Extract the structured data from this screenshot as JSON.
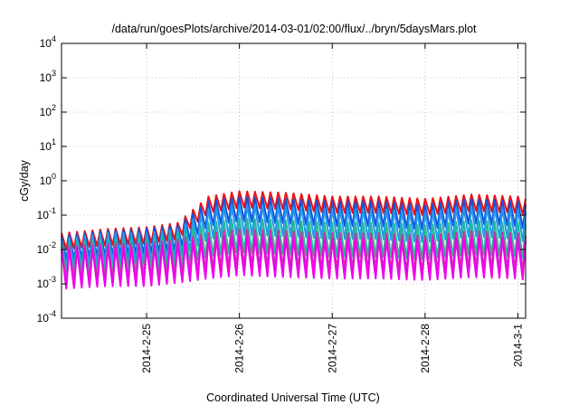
{
  "chart_data": {
    "type": "line",
    "title": "/data/run/goesPlots/archive/2014-03-01/02:00/flux/../bryn/5daysMars.plot",
    "xlabel": "Coordinated Universal Time (UTC)",
    "ylabel": "cGy/day",
    "yscale": "log",
    "ylim": [
      0.0001,
      10000
    ],
    "y_ticks": [
      {
        "base": "10",
        "exp": "-4"
      },
      {
        "base": "10",
        "exp": "-3"
      },
      {
        "base": "10",
        "exp": "-2"
      },
      {
        "base": "10",
        "exp": "-1"
      },
      {
        "base": "10",
        "exp": "0"
      },
      {
        "base": "10",
        "exp": "1"
      },
      {
        "base": "10",
        "exp": "2"
      },
      {
        "base": "10",
        "exp": "3"
      },
      {
        "base": "10",
        "exp": "4"
      }
    ],
    "xlim": [
      "2014-02-24 02:00",
      "2014-03-01 02:00"
    ],
    "x_ticks": [
      "2014-2-25",
      "2014-2-26",
      "2014-2-27",
      "2014-2-28",
      "2014-3-1"
    ],
    "grid": true,
    "legend": "none",
    "series_colors": [
      "#ee1111",
      "#1155dd",
      "#2299ee",
      "#22bb99",
      "#cc33aa",
      "#ee00ee"
    ],
    "series": [
      {
        "color": "#ee1111",
        "x": [
          "2014-02-24 02:00",
          "2014-02-24 14:00",
          "2014-02-25 00:00",
          "2014-02-25 08:00",
          "2014-02-25 16:00",
          "2014-02-26 00:00",
          "2014-02-26 12:00",
          "2014-02-27 00:00",
          "2014-02-27 12:00",
          "2014-02-28 00:00",
          "2014-02-28 12:00",
          "2014-03-01 00:00",
          "2014-03-01 02:00"
        ],
        "y": [
          0.03,
          0.04,
          0.045,
          0.06,
          0.35,
          0.5,
          0.45,
          0.35,
          0.35,
          0.3,
          0.4,
          0.35,
          0.3
        ]
      },
      {
        "color": "#1155dd",
        "x": [
          "2014-02-24 02:00",
          "2014-02-24 14:00",
          "2014-02-25 00:00",
          "2014-02-25 08:00",
          "2014-02-25 16:00",
          "2014-02-26 00:00",
          "2014-02-26 12:00",
          "2014-02-27 00:00",
          "2014-02-27 12:00",
          "2014-02-28 00:00",
          "2014-02-28 12:00",
          "2014-03-01 00:00",
          "2014-03-01 02:00"
        ],
        "y": [
          0.025,
          0.035,
          0.04,
          0.05,
          0.25,
          0.35,
          0.3,
          0.25,
          0.25,
          0.2,
          0.3,
          0.25,
          0.2
        ]
      },
      {
        "color": "#2299ee",
        "x": [
          "2014-02-24 02:00",
          "2014-02-24 14:00",
          "2014-02-25 00:00",
          "2014-02-25 08:00",
          "2014-02-25 16:00",
          "2014-02-26 00:00",
          "2014-02-26 12:00",
          "2014-02-27 00:00",
          "2014-02-27 12:00",
          "2014-02-28 00:00",
          "2014-02-28 12:00",
          "2014-03-01 00:00",
          "2014-03-01 02:00"
        ],
        "y": [
          0.02,
          0.03,
          0.03,
          0.04,
          0.15,
          0.2,
          0.18,
          0.15,
          0.15,
          0.12,
          0.18,
          0.15,
          0.12
        ]
      },
      {
        "color": "#22bb99",
        "x": [
          "2014-02-24 02:00",
          "2014-02-24 14:00",
          "2014-02-25 00:00",
          "2014-02-25 08:00",
          "2014-02-25 16:00",
          "2014-02-26 00:00",
          "2014-02-26 12:00",
          "2014-02-27 00:00",
          "2014-02-27 12:00",
          "2014-02-28 00:00",
          "2014-02-28 12:00",
          "2014-03-01 00:00",
          "2014-03-01 02:00"
        ],
        "y": [
          0.015,
          0.02,
          0.02,
          0.03,
          0.06,
          0.08,
          0.07,
          0.06,
          0.06,
          0.05,
          0.07,
          0.06,
          0.05
        ]
      },
      {
        "color": "#cc33aa",
        "x": [
          "2014-02-24 02:00",
          "2014-02-24 14:00",
          "2014-02-25 00:00",
          "2014-02-25 08:00",
          "2014-02-25 16:00",
          "2014-02-26 00:00",
          "2014-02-26 12:00",
          "2014-02-27 00:00",
          "2014-02-27 12:00",
          "2014-02-28 00:00",
          "2014-02-28 12:00",
          "2014-03-01 00:00",
          "2014-03-01 02:00"
        ],
        "y": [
          0.012,
          0.015,
          0.015,
          0.02,
          0.03,
          0.04,
          0.035,
          0.03,
          0.03,
          0.025,
          0.035,
          0.03,
          0.025
        ]
      },
      {
        "color": "#ee00ee",
        "x": [
          "2014-02-24 02:00",
          "2014-02-24 14:00",
          "2014-02-25 00:00",
          "2014-02-25 08:00",
          "2014-02-25 16:00",
          "2014-02-26 00:00",
          "2014-02-26 12:00",
          "2014-02-27 00:00",
          "2014-02-27 12:00",
          "2014-02-28 00:00",
          "2014-02-28 12:00",
          "2014-03-01 00:00",
          "2014-03-01 02:00"
        ],
        "y": [
          0.01,
          0.012,
          0.012,
          0.015,
          0.02,
          0.025,
          0.022,
          0.02,
          0.02,
          0.018,
          0.022,
          0.02,
          0.018
        ]
      }
    ]
  }
}
